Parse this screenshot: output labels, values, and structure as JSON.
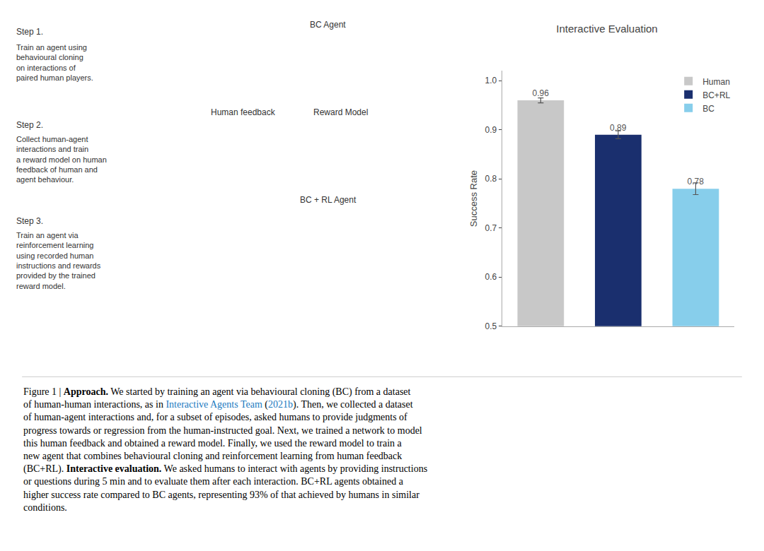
{
  "chart_data": {
    "type": "bar",
    "title": "Interactive Evaluation",
    "ylabel": "Success Rate",
    "categories": [
      "Human",
      "BC+RL",
      "BC"
    ],
    "values": [
      0.96,
      0.89,
      0.78
    ],
    "errors": [
      0.005,
      0.008,
      0.012
    ],
    "colors": [
      "#c8c8c8",
      "#1a2f6e",
      "#87ceeb"
    ],
    "ylim": [
      0.5,
      1.02
    ],
    "yticks": [
      0.5,
      0.6,
      0.7,
      0.8,
      0.9,
      {
        "value": 1.0,
        "label": "1.0"
      }
    ],
    "grid": false,
    "legend": "upper right",
    "data_labels": true,
    "tick_labels": "y",
    "annotations": [
      "Step 1.",
      "Step 2.",
      "Step 3.",
      "Train an agent using\nbehavioural cloning\non interactions of\npaired human players.",
      "Collect human-agent\ninteractions and train\na reward model on human\nfeedback of human and\nagent behaviour.",
      "Train an agent via\nreinforcement learning\nusing recorded human\ninstructions and rewards\nprovided by the trained\nreward model.",
      "BC Agent",
      "Human feedback",
      "Reward Model",
      "BC + RL Agent"
    ],
    "caption": [
      {
        "text": "Figure 1 | ",
        "bold": false,
        "color": "#000000"
      },
      {
        "text": "Approach.",
        "bold": true,
        "color": "#000000"
      },
      {
        "text": " We started by training an agent via behavioural cloning (BC) from a dataset\nof human-human interactions, as in ",
        "bold": false,
        "color": "#000000"
      },
      {
        "text": "Interactive Agents Team",
        "bold": false,
        "color": "#1a7abf"
      },
      {
        "text": " (",
        "bold": false,
        "color": "#000000"
      },
      {
        "text": "2021b",
        "bold": false,
        "color": "#1a7abf"
      },
      {
        "text": "). Then, we collected a dataset\nof human-agent interactions and, for a subset of episodes, asked humans to provide judgments of\nprogress towards or regression from the human-instructed goal. Next, we trained a network to model\nthis human feedback and obtained a reward model. Finally, we used the reward model to train a\nnew agent that combines behavioural cloning and reinforcement learning from human feedback\n(BC+RL). ",
        "bold": false,
        "color": "#000000"
      },
      {
        "text": "Interactive evaluation.",
        "bold": true,
        "color": "#000000"
      },
      {
        "text": " We asked humans to interact with agents by providing instructions\nor questions during 5 min and to evaluate them after each interaction. BC+RL agents obtained a\nhigher success rate compared to BC agents, representing 93% of that achieved by humans in similar\nconditions.",
        "bold": false,
        "color": "#000000"
      }
    ]
  }
}
